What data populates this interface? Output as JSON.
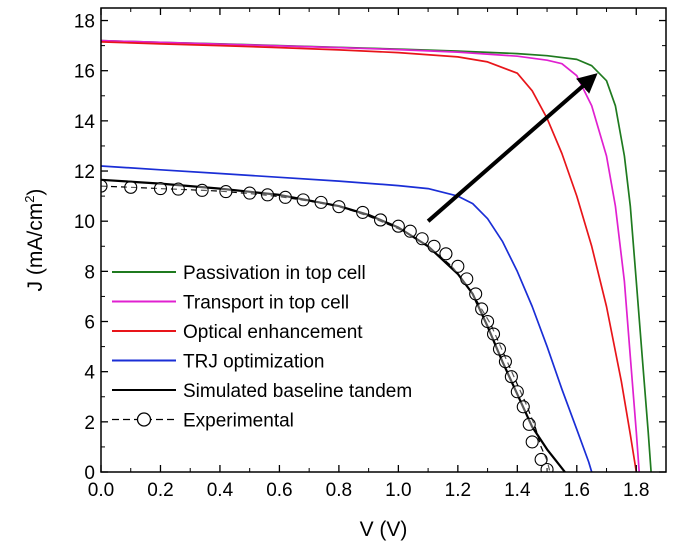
{
  "chart_data": {
    "type": "line",
    "title": "",
    "xlabel": "V (V)",
    "ylabel_main": "J (mA/cm",
    "ylabel_sup": "2",
    "ylabel_tail": ")",
    "xlim": [
      0.0,
      1.9
    ],
    "ylim": [
      0,
      18.5
    ],
    "xticks": [
      0.0,
      0.2,
      0.4,
      0.6,
      0.8,
      1.0,
      1.2,
      1.4,
      1.6,
      1.8
    ],
    "xtick_labels": [
      "0.0",
      "0.2",
      "0.4",
      "0.6",
      "0.8",
      "1.0",
      "1.2",
      "1.4",
      "1.6",
      "1.8"
    ],
    "yticks": [
      0,
      2,
      4,
      6,
      8,
      10,
      12,
      14,
      16,
      18
    ],
    "ytick_labels": [
      "0",
      "2",
      "4",
      "6",
      "8",
      "10",
      "12",
      "14",
      "16",
      "18"
    ],
    "legend_position": "lower-left",
    "series": [
      {
        "name": "Passivation in top cell",
        "color": "#1f7a1f",
        "style": "solid",
        "points": [
          [
            0,
            17.2
          ],
          [
            0.2,
            17.13
          ],
          [
            0.4,
            17.07
          ],
          [
            0.6,
            17.0
          ],
          [
            0.8,
            16.93
          ],
          [
            1.0,
            16.86
          ],
          [
            1.2,
            16.78
          ],
          [
            1.4,
            16.68
          ],
          [
            1.5,
            16.6
          ],
          [
            1.6,
            16.45
          ],
          [
            1.65,
            16.2
          ],
          [
            1.7,
            15.6
          ],
          [
            1.73,
            14.6
          ],
          [
            1.76,
            12.6
          ],
          [
            1.78,
            10.6
          ],
          [
            1.8,
            7.6
          ],
          [
            1.82,
            4.6
          ],
          [
            1.84,
            1.6
          ],
          [
            1.85,
            0
          ]
        ]
      },
      {
        "name": "Transport in top cell",
        "color": "#e020d0",
        "style": "solid",
        "points": [
          [
            0,
            17.2
          ],
          [
            0.2,
            17.13
          ],
          [
            0.4,
            17.06
          ],
          [
            0.6,
            16.99
          ],
          [
            0.8,
            16.92
          ],
          [
            1.0,
            16.84
          ],
          [
            1.2,
            16.74
          ],
          [
            1.4,
            16.58
          ],
          [
            1.5,
            16.42
          ],
          [
            1.55,
            16.28
          ],
          [
            1.6,
            15.8
          ],
          [
            1.65,
            14.6
          ],
          [
            1.7,
            12.6
          ],
          [
            1.73,
            10.6
          ],
          [
            1.76,
            7.6
          ],
          [
            1.78,
            4.6
          ],
          [
            1.8,
            1.6
          ],
          [
            1.81,
            0
          ]
        ]
      },
      {
        "name": "Optical enhancement",
        "color": "#e8151a",
        "style": "solid",
        "points": [
          [
            0,
            17.15
          ],
          [
            0.2,
            17.07
          ],
          [
            0.4,
            17.0
          ],
          [
            0.6,
            16.92
          ],
          [
            0.8,
            16.83
          ],
          [
            1.0,
            16.72
          ],
          [
            1.2,
            16.55
          ],
          [
            1.3,
            16.35
          ],
          [
            1.4,
            15.9
          ],
          [
            1.45,
            15.2
          ],
          [
            1.5,
            14.1
          ],
          [
            1.55,
            12.7
          ],
          [
            1.6,
            11.0
          ],
          [
            1.65,
            9.0
          ],
          [
            1.7,
            6.6
          ],
          [
            1.75,
            3.6
          ],
          [
            1.78,
            1.5
          ],
          [
            1.8,
            0
          ]
        ]
      },
      {
        "name": "TRJ optimization",
        "color": "#1a2ed6",
        "style": "solid",
        "points": [
          [
            0,
            12.2
          ],
          [
            0.2,
            12.05
          ],
          [
            0.4,
            11.9
          ],
          [
            0.6,
            11.75
          ],
          [
            0.8,
            11.6
          ],
          [
            1.0,
            11.42
          ],
          [
            1.1,
            11.3
          ],
          [
            1.2,
            11.0
          ],
          [
            1.25,
            10.7
          ],
          [
            1.3,
            10.1
          ],
          [
            1.35,
            9.2
          ],
          [
            1.4,
            8.0
          ],
          [
            1.45,
            6.6
          ],
          [
            1.5,
            5.0
          ],
          [
            1.55,
            3.3
          ],
          [
            1.6,
            1.7
          ],
          [
            1.64,
            0.4
          ],
          [
            1.65,
            0
          ]
        ]
      },
      {
        "name": "Simulated baseline tandem",
        "color": "#000000",
        "style": "solid",
        "width": 2.2,
        "points": [
          [
            0,
            11.65
          ],
          [
            0.2,
            11.5
          ],
          [
            0.4,
            11.3
          ],
          [
            0.6,
            11.05
          ],
          [
            0.8,
            10.6
          ],
          [
            0.9,
            10.25
          ],
          [
            1.0,
            9.75
          ],
          [
            1.1,
            9.0
          ],
          [
            1.2,
            7.9
          ],
          [
            1.25,
            7.1
          ],
          [
            1.3,
            5.8
          ],
          [
            1.35,
            4.4
          ],
          [
            1.4,
            3.1
          ],
          [
            1.45,
            1.8
          ],
          [
            1.5,
            0.9
          ],
          [
            1.53,
            0.45
          ],
          [
            1.56,
            0
          ]
        ]
      },
      {
        "name": "Experimental",
        "color": "#000000",
        "style": "dashed",
        "marker": "circle",
        "points": [
          [
            0,
            11.4
          ],
          [
            0.1,
            11.35
          ],
          [
            0.2,
            11.3
          ],
          [
            0.3,
            11.25
          ],
          [
            0.4,
            11.2
          ],
          [
            0.5,
            11.1
          ],
          [
            0.6,
            10.98
          ],
          [
            0.7,
            10.8
          ],
          [
            0.8,
            10.58
          ],
          [
            0.85,
            10.4
          ],
          [
            0.9,
            10.2
          ],
          [
            0.95,
            9.95
          ],
          [
            1.0,
            9.7
          ],
          [
            1.05,
            9.4
          ],
          [
            1.1,
            9.0
          ],
          [
            1.14,
            8.6
          ],
          [
            1.18,
            8.2
          ],
          [
            1.22,
            7.6
          ],
          [
            1.25,
            7.1
          ],
          [
            1.28,
            6.5
          ],
          [
            1.31,
            5.9
          ],
          [
            1.34,
            5.1
          ],
          [
            1.37,
            4.3
          ],
          [
            1.4,
            3.5
          ],
          [
            1.43,
            2.7
          ],
          [
            1.46,
            1.8
          ],
          [
            1.48,
            1.0
          ],
          [
            1.5,
            0.45
          ],
          [
            1.51,
            0
          ]
        ],
        "marker_points": [
          [
            0,
            11.4
          ],
          [
            0.1,
            11.35
          ],
          [
            0.2,
            11.3
          ],
          [
            0.26,
            11.28
          ],
          [
            0.34,
            11.23
          ],
          [
            0.42,
            11.18
          ],
          [
            0.5,
            11.12
          ],
          [
            0.56,
            11.05
          ],
          [
            0.62,
            10.95
          ],
          [
            0.68,
            10.85
          ],
          [
            0.74,
            10.75
          ],
          [
            0.8,
            10.58
          ],
          [
            0.88,
            10.35
          ],
          [
            0.94,
            10.05
          ],
          [
            1.0,
            9.8
          ],
          [
            1.04,
            9.6
          ],
          [
            1.08,
            9.3
          ],
          [
            1.12,
            9.0
          ],
          [
            1.16,
            8.7
          ],
          [
            1.2,
            8.2
          ],
          [
            1.23,
            7.7
          ],
          [
            1.26,
            7.1
          ],
          [
            1.28,
            6.5
          ],
          [
            1.3,
            6.0
          ],
          [
            1.32,
            5.5
          ],
          [
            1.34,
            4.9
          ],
          [
            1.36,
            4.4
          ],
          [
            1.38,
            3.8
          ],
          [
            1.4,
            3.2
          ],
          [
            1.42,
            2.6
          ],
          [
            1.44,
            1.9
          ],
          [
            1.45,
            1.2
          ],
          [
            1.48,
            0.5
          ],
          [
            1.5,
            0.1
          ]
        ]
      }
    ],
    "annotation_arrow": {
      "from": [
        1.1,
        10.0
      ],
      "to": [
        1.66,
        15.8
      ]
    }
  }
}
